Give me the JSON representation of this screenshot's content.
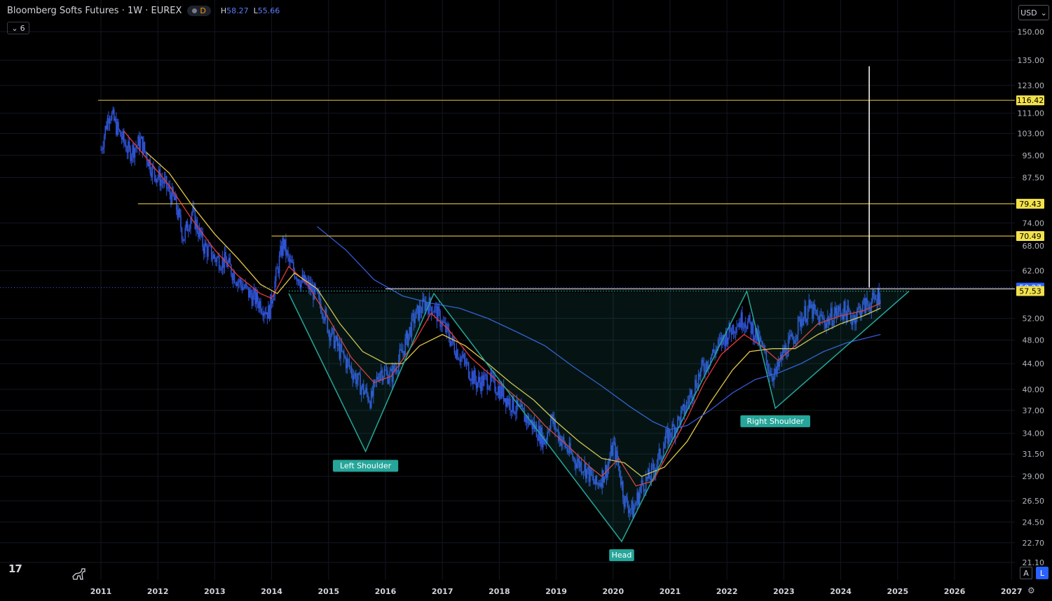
{
  "header": {
    "symbol": "Bloomberg Softs Futures · 1W · EUREX",
    "interval_badge": "D",
    "high_label": "H",
    "high_value": "58.27",
    "low_label": "L",
    "low_value": "55.66",
    "indicator_count": "6"
  },
  "currency": "USD",
  "buttons": {
    "auto": "A",
    "log": "L"
  },
  "colors": {
    "background": "#000000",
    "candles": "#2f54d6",
    "ma_red": "#e53935",
    "ma_yellow": "#e6c84a",
    "ma_blue": "#3558d8",
    "pattern": "#26a69a",
    "level_line": "#c9b23c",
    "last_price": "#2962ff",
    "marker_line": "#ffffff"
  },
  "chart_data": {
    "type": "candlestick",
    "log_scale": true,
    "ylim": [
      20.2,
      158
    ],
    "y_ticks": [
      150.0,
      135.0,
      123.0,
      111.0,
      103.0,
      95.0,
      87.5,
      74.0,
      68.0,
      62.0,
      52.0,
      48.0,
      44.0,
      40.0,
      37.0,
      34.0,
      31.5,
      29.0,
      26.5,
      24.5,
      22.7,
      21.1
    ],
    "y_tick_labels": [
      "150.00",
      "135.00",
      "123.00",
      "111.00",
      "103.00",
      "95.00",
      "87.50",
      "74.00",
      "68.00",
      "62.00",
      "52.00",
      "48.00",
      "44.00",
      "40.00",
      "37.00",
      "34.00",
      "31.50",
      "29.00",
      "26.50",
      "24.50",
      "22.70",
      "21.10"
    ],
    "x_ticks": [
      2011,
      2012,
      2013,
      2014,
      2015,
      2016,
      2017,
      2018,
      2019,
      2020,
      2021,
      2022,
      2023,
      2024,
      2025,
      2026,
      2027
    ],
    "x_tick_labels": [
      "2011",
      "2012",
      "2013",
      "2014",
      "2015",
      "2016",
      "2017",
      "2018",
      "2019",
      "2020",
      "2021",
      "2022",
      "2023",
      "2024",
      "2025",
      "2026",
      "2027"
    ],
    "xlim": [
      2010.8,
      2027.0
    ],
    "price_path": [
      [
        2011.0,
        97
      ],
      [
        2011.15,
        112
      ],
      [
        2011.3,
        104
      ],
      [
        2011.5,
        96
      ],
      [
        2011.7,
        100
      ],
      [
        2011.9,
        90
      ],
      [
        2012.1,
        86
      ],
      [
        2012.3,
        80
      ],
      [
        2012.45,
        70
      ],
      [
        2012.6,
        77
      ],
      [
        2012.8,
        68
      ],
      [
        2013.0,
        65
      ],
      [
        2013.2,
        64
      ],
      [
        2013.4,
        60
      ],
      [
        2013.6,
        57
      ],
      [
        2013.8,
        55
      ],
      [
        2013.95,
        53
      ],
      [
        2014.1,
        62
      ],
      [
        2014.2,
        69
      ],
      [
        2014.3,
        64
      ],
      [
        2014.5,
        60
      ],
      [
        2014.7,
        58
      ],
      [
        2014.9,
        54
      ],
      [
        2015.0,
        50
      ],
      [
        2015.2,
        46
      ],
      [
        2015.4,
        43
      ],
      [
        2015.6,
        40
      ],
      [
        2015.75,
        38.5
      ],
      [
        2015.9,
        43
      ],
      [
        2016.1,
        42
      ],
      [
        2016.3,
        46
      ],
      [
        2016.5,
        52
      ],
      [
        2016.7,
        55
      ],
      [
        2016.85,
        54
      ],
      [
        2017.0,
        51
      ],
      [
        2017.2,
        47
      ],
      [
        2017.4,
        44
      ],
      [
        2017.6,
        41
      ],
      [
        2017.8,
        41.5
      ],
      [
        2018.0,
        40
      ],
      [
        2018.2,
        38
      ],
      [
        2018.4,
        36.5
      ],
      [
        2018.6,
        35
      ],
      [
        2018.8,
        33
      ],
      [
        2018.9,
        36
      ],
      [
        2019.1,
        33
      ],
      [
        2019.3,
        31
      ],
      [
        2019.5,
        30
      ],
      [
        2019.7,
        28
      ],
      [
        2019.9,
        30
      ],
      [
        2020.0,
        32.5
      ],
      [
        2020.1,
        30
      ],
      [
        2020.2,
        26.5
      ],
      [
        2020.35,
        25.5
      ],
      [
        2020.5,
        28
      ],
      [
        2020.65,
        29
      ],
      [
        2020.8,
        31
      ],
      [
        2020.95,
        33.5
      ],
      [
        2021.1,
        35
      ],
      [
        2021.25,
        37
      ],
      [
        2021.4,
        40
      ],
      [
        2021.55,
        43
      ],
      [
        2021.7,
        45
      ],
      [
        2021.85,
        47
      ],
      [
        2022.0,
        49
      ],
      [
        2022.15,
        51
      ],
      [
        2022.3,
        52
      ],
      [
        2022.45,
        50
      ],
      [
        2022.6,
        47
      ],
      [
        2022.75,
        43
      ],
      [
        2022.85,
        42
      ],
      [
        2023.0,
        46
      ],
      [
        2023.15,
        48
      ],
      [
        2023.3,
        52
      ],
      [
        2023.45,
        54
      ],
      [
        2023.6,
        52
      ],
      [
        2023.75,
        51.5
      ],
      [
        2023.9,
        53
      ],
      [
        2024.05,
        53.5
      ],
      [
        2024.2,
        52
      ],
      [
        2024.35,
        54
      ],
      [
        2024.5,
        55
      ],
      [
        2024.6,
        55.5
      ],
      [
        2024.7,
        57.5
      ]
    ],
    "moving_averages": [
      {
        "color_key": "ma_red",
        "points": [
          [
            2011.4,
            104
          ],
          [
            2011.8,
            94
          ],
          [
            2012.2,
            85
          ],
          [
            2012.6,
            75
          ],
          [
            2013.0,
            67
          ],
          [
            2013.4,
            61
          ],
          [
            2013.8,
            57
          ],
          [
            2014.0,
            56
          ],
          [
            2014.3,
            63
          ],
          [
            2014.6,
            59.5
          ],
          [
            2015.0,
            52
          ],
          [
            2015.4,
            45
          ],
          [
            2015.8,
            41
          ],
          [
            2016.1,
            42
          ],
          [
            2016.5,
            47.5
          ],
          [
            2016.8,
            53
          ],
          [
            2017.1,
            50
          ],
          [
            2017.5,
            45
          ],
          [
            2018.0,
            41
          ],
          [
            2018.5,
            37.5
          ],
          [
            2018.8,
            35
          ],
          [
            2019.2,
            32.5
          ],
          [
            2019.6,
            30
          ],
          [
            2019.8,
            29
          ],
          [
            2020.1,
            31
          ],
          [
            2020.4,
            28
          ],
          [
            2020.7,
            28.5
          ],
          [
            2021.0,
            32
          ],
          [
            2021.3,
            36
          ],
          [
            2021.6,
            41
          ],
          [
            2021.9,
            45.5
          ],
          [
            2022.3,
            49
          ],
          [
            2022.6,
            47
          ],
          [
            2022.9,
            44.5
          ],
          [
            2023.2,
            47
          ],
          [
            2023.6,
            51
          ],
          [
            2024.0,
            52.5
          ],
          [
            2024.4,
            53.5
          ],
          [
            2024.7,
            55
          ]
        ]
      },
      {
        "color_key": "ma_yellow",
        "points": [
          [
            2011.8,
            96
          ],
          [
            2012.2,
            89
          ],
          [
            2012.6,
            79
          ],
          [
            2013.0,
            71
          ],
          [
            2013.4,
            65
          ],
          [
            2013.8,
            59
          ],
          [
            2014.1,
            57
          ],
          [
            2014.4,
            61.5
          ],
          [
            2014.8,
            58
          ],
          [
            2015.2,
            51
          ],
          [
            2015.6,
            46
          ],
          [
            2016.0,
            44
          ],
          [
            2016.3,
            44
          ],
          [
            2016.6,
            47
          ],
          [
            2017.0,
            49
          ],
          [
            2017.4,
            47
          ],
          [
            2017.8,
            44
          ],
          [
            2018.2,
            41
          ],
          [
            2018.6,
            38.5
          ],
          [
            2019.0,
            35.5
          ],
          [
            2019.4,
            33
          ],
          [
            2019.8,
            31
          ],
          [
            2020.2,
            30.5
          ],
          [
            2020.5,
            29
          ],
          [
            2020.9,
            30
          ],
          [
            2021.3,
            33
          ],
          [
            2021.7,
            38
          ],
          [
            2022.1,
            43
          ],
          [
            2022.4,
            46
          ],
          [
            2022.8,
            46.5
          ],
          [
            2023.2,
            46.5
          ],
          [
            2023.6,
            49
          ],
          [
            2024.0,
            51
          ],
          [
            2024.4,
            52.5
          ],
          [
            2024.7,
            54
          ]
        ]
      },
      {
        "color_key": "ma_blue",
        "points": [
          [
            2014.8,
            73
          ],
          [
            2015.3,
            67
          ],
          [
            2015.8,
            60
          ],
          [
            2016.3,
            56.5
          ],
          [
            2016.8,
            55
          ],
          [
            2017.3,
            54
          ],
          [
            2017.8,
            52
          ],
          [
            2018.3,
            49.5
          ],
          [
            2018.8,
            47
          ],
          [
            2019.3,
            43.5
          ],
          [
            2019.8,
            40.5
          ],
          [
            2020.3,
            37.5
          ],
          [
            2020.7,
            35.5
          ],
          [
            2021.0,
            34.5
          ],
          [
            2021.3,
            35
          ],
          [
            2021.7,
            37
          ],
          [
            2022.1,
            39.5
          ],
          [
            2022.5,
            41.5
          ],
          [
            2022.9,
            42.5
          ],
          [
            2023.3,
            44
          ],
          [
            2023.7,
            46
          ],
          [
            2024.1,
            47.5
          ],
          [
            2024.5,
            48.5
          ],
          [
            2024.7,
            49
          ]
        ]
      }
    ],
    "pattern_polyline": [
      [
        2014.3,
        57
      ],
      [
        2015.65,
        31.8
      ],
      [
        2016.85,
        57
      ],
      [
        2020.15,
        22.8
      ],
      [
        2022.35,
        57.5
      ],
      [
        2022.85,
        37.3
      ],
      [
        2025.2,
        57.5
      ]
    ],
    "neckline": 57.53,
    "annotations": [
      {
        "label": "Left Shoulder",
        "x": 2015.65,
        "y": 30.2
      },
      {
        "label": "Head",
        "x": 2020.15,
        "y": 21.7
      },
      {
        "label": "Right Shoulder",
        "x": 2022.85,
        "y": 35.6
      }
    ],
    "horizontal_levels": [
      {
        "value": 116.42,
        "label": "116.42",
        "x_start": 2010.95
      },
      {
        "value": 79.43,
        "label": "79.43",
        "x_start": 2011.65
      },
      {
        "value": 70.49,
        "label": "70.49",
        "x_start": 2014.0
      }
    ],
    "last_price": {
      "value": 58.27,
      "label": "58.27"
    },
    "neckline_label": {
      "value": 57.53,
      "label": "57.53"
    },
    "target_marker": {
      "x": 2024.5,
      "y_from": 58.27,
      "y_to": 132
    }
  }
}
